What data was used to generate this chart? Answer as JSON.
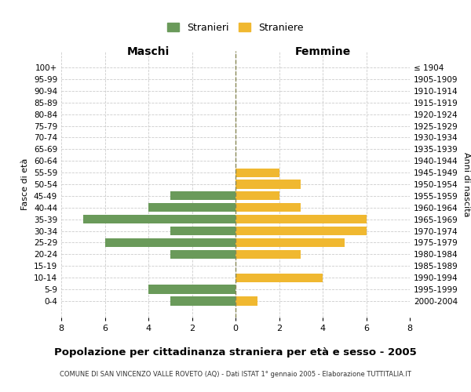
{
  "age_groups": [
    "100+",
    "95-99",
    "90-94",
    "85-89",
    "80-84",
    "75-79",
    "70-74",
    "65-69",
    "60-64",
    "55-59",
    "50-54",
    "45-49",
    "40-44",
    "35-39",
    "30-34",
    "25-29",
    "20-24",
    "15-19",
    "10-14",
    "5-9",
    "0-4"
  ],
  "birth_years": [
    "≤ 1904",
    "1905-1909",
    "1910-1914",
    "1915-1919",
    "1920-1924",
    "1925-1929",
    "1930-1934",
    "1935-1939",
    "1940-1944",
    "1945-1949",
    "1950-1954",
    "1955-1959",
    "1960-1964",
    "1965-1969",
    "1970-1974",
    "1975-1979",
    "1980-1984",
    "1985-1989",
    "1990-1994",
    "1995-1999",
    "2000-2004"
  ],
  "maschi": [
    0,
    0,
    0,
    0,
    0,
    0,
    0,
    0,
    0,
    0,
    0,
    3,
    4,
    7,
    3,
    6,
    3,
    0,
    0,
    4,
    3
  ],
  "femmine": [
    0,
    0,
    0,
    0,
    0,
    0,
    0,
    0,
    0,
    2,
    3,
    2,
    3,
    6,
    6,
    5,
    3,
    0,
    4,
    0,
    1
  ],
  "maschi_color": "#6a9a5a",
  "femmine_color": "#f0b830",
  "title": "Popolazione per cittadinanza straniera per età e sesso - 2005",
  "subtitle": "COMUNE DI SAN VINCENZO VALLE ROVETO (AQ) - Dati ISTAT 1° gennaio 2005 - Elaborazione TUTTITALIA.IT",
  "xlabel_left": "Maschi",
  "xlabel_right": "Femmine",
  "ylabel_left": "Fasce di età",
  "ylabel_right": "Anni di nascita",
  "legend_maschi": "Stranieri",
  "legend_femmine": "Straniere",
  "xlim": 8,
  "background_color": "#ffffff",
  "grid_color": "#cccccc"
}
